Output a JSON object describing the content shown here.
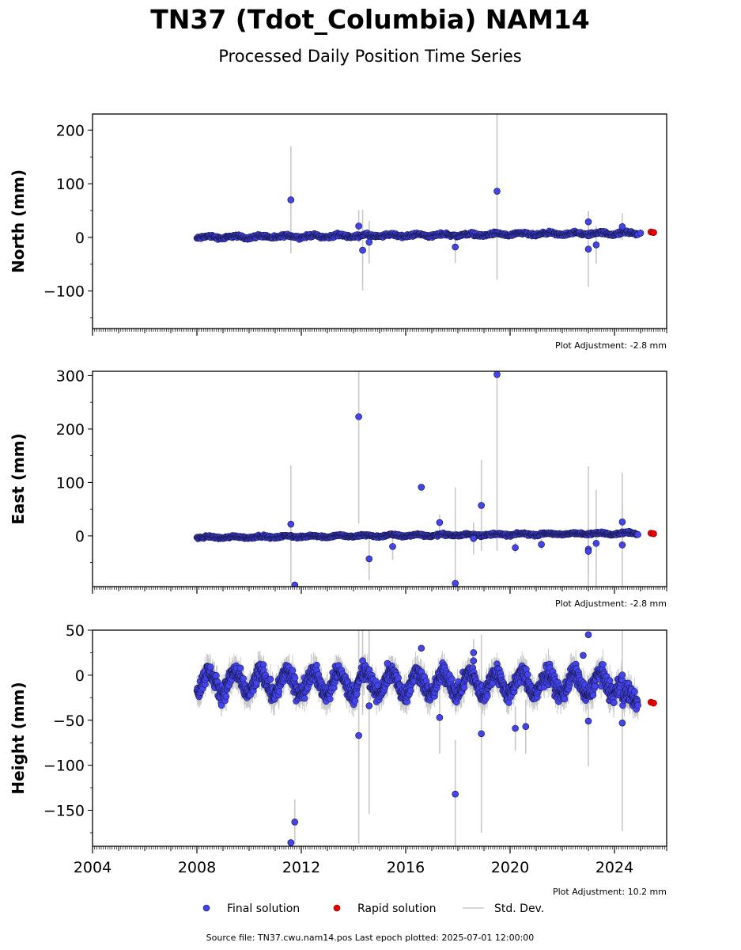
{
  "title": "TN37 (Tdot_Columbia) NAM14",
  "subtitle": "Processed Daily Position Time Series",
  "source_line": "Source file: TN37.cwu.nam14.pos  Last epoch plotted: 2025-07-01 12:00:00",
  "colors": {
    "final": "#4444ee",
    "final_edge": "#111133",
    "rapid": "#ee0000",
    "stddev": "#c8c8c8"
  },
  "legend": {
    "final": "Final solution",
    "rapid": "Rapid solution",
    "stddev": "Std. Dev."
  },
  "chart_data": [
    {
      "type": "scatter",
      "ylabel": "North (mm)",
      "adjustment": "Plot Adjustment: -2.8 mm",
      "xlim": [
        2004.0,
        2026.0
      ],
      "ylim": [
        -170,
        230
      ],
      "yticks": [
        200,
        100,
        0,
        -100
      ],
      "ytick_labels": [
        "200",
        "100",
        "0",
        "−100"
      ],
      "xticks": [
        2004,
        2008,
        2012,
        2016,
        2020,
        2024
      ],
      "xtick_labels": [],
      "final_series": {
        "start": 2008.0,
        "end": 2024.9,
        "trend_start": 0,
        "trend_end": 8,
        "annual_amp": 2,
        "noise": 2,
        "step": 0.02
      },
      "final_outliers": [
        {
          "x": 2011.6,
          "y": 70,
          "err": 100
        },
        {
          "x": 2014.2,
          "y": 21,
          "err": 30
        },
        {
          "x": 2014.35,
          "y": -24,
          "err": 75
        },
        {
          "x": 2014.6,
          "y": -9,
          "err": 40
        },
        {
          "x": 2017.9,
          "y": -18,
          "err": 30
        },
        {
          "x": 2019.5,
          "y": 86,
          "err": 165
        },
        {
          "x": 2023.0,
          "y": 29,
          "err": 20
        },
        {
          "x": 2023.0,
          "y": -22,
          "err": 70
        },
        {
          "x": 2023.3,
          "y": -14,
          "err": 35
        },
        {
          "x": 2024.3,
          "y": 20,
          "err": 25
        },
        {
          "x": 2025.0,
          "y": 8,
          "err": 0
        }
      ],
      "rapid": [
        {
          "x": 2025.4,
          "y": 10
        },
        {
          "x": 2025.5,
          "y": 9
        }
      ]
    },
    {
      "type": "scatter",
      "ylabel": "East (mm)",
      "adjustment": "Plot Adjustment: -2.8 mm",
      "xlim": [
        2004.0,
        2026.0
      ],
      "ylim": [
        -95,
        308
      ],
      "yticks": [
        300,
        200,
        100,
        0
      ],
      "ytick_labels": [
        "300",
        "200",
        "100",
        "0"
      ],
      "xticks": [
        2004,
        2008,
        2012,
        2016,
        2020,
        2024
      ],
      "xtick_labels": [],
      "final_series": {
        "start": 2008.0,
        "end": 2024.9,
        "trend_start": -3,
        "trend_end": 5,
        "annual_amp": 1.5,
        "noise": 1.5,
        "step": 0.02
      },
      "final_outliers": [
        {
          "x": 2011.6,
          "y": 22,
          "err": 110
        },
        {
          "x": 2011.75,
          "y": -92,
          "err": 0
        },
        {
          "x": 2014.2,
          "y": 223,
          "err": 200
        },
        {
          "x": 2014.6,
          "y": -43,
          "err": 40
        },
        {
          "x": 2015.5,
          "y": -20,
          "err": 25
        },
        {
          "x": 2016.6,
          "y": 91,
          "err": 0
        },
        {
          "x": 2017.3,
          "y": 25,
          "err": 15
        },
        {
          "x": 2017.9,
          "y": -89,
          "err": 180
        },
        {
          "x": 2018.6,
          "y": -5,
          "err": 30
        },
        {
          "x": 2018.9,
          "y": 57,
          "err": 85
        },
        {
          "x": 2019.5,
          "y": 302,
          "err": 330
        },
        {
          "x": 2020.2,
          "y": -22,
          "err": 10
        },
        {
          "x": 2021.2,
          "y": -16,
          "err": 10
        },
        {
          "x": 2023.0,
          "y": -25,
          "err": 155
        },
        {
          "x": 2023.0,
          "y": -29,
          "err": 40
        },
        {
          "x": 2023.3,
          "y": -14,
          "err": 100
        },
        {
          "x": 2024.3,
          "y": 26,
          "err": 35
        },
        {
          "x": 2024.3,
          "y": -17,
          "err": 135
        }
      ],
      "rapid": [
        {
          "x": 2025.4,
          "y": 5
        },
        {
          "x": 2025.5,
          "y": 4
        }
      ]
    },
    {
      "type": "scatter",
      "ylabel": "Height (mm)",
      "adjustment": "Plot Adjustment: 10.2 mm",
      "xlim": [
        2004.0,
        2026.0
      ],
      "ylim": [
        -190,
        50
      ],
      "yticks": [
        50,
        0,
        -50,
        -100,
        -150
      ],
      "ytick_labels": [
        "50",
        "0",
        "−50",
        "−100",
        "−150"
      ],
      "xticks": [
        2004,
        2008,
        2012,
        2016,
        2020,
        2024
      ],
      "xtick_labels": [
        "2004",
        "2008",
        "2012",
        "2016",
        "2020",
        "2024"
      ],
      "final_series": {
        "start": 2008.0,
        "end": 2024.9,
        "trend_start": -8,
        "trend_end": -10,
        "annual_amp": 12,
        "noise": 7,
        "step": 0.01,
        "dip": {
          "start": 2024.3,
          "end": 2024.9,
          "offset": -25
        }
      },
      "final_outliers": [
        {
          "x": 2011.6,
          "y": -186,
          "err": 0
        },
        {
          "x": 2011.75,
          "y": -163,
          "err": 25
        },
        {
          "x": 2014.2,
          "y": -67,
          "err": 120
        },
        {
          "x": 2014.35,
          "y": 16,
          "err": 60
        },
        {
          "x": 2014.6,
          "y": -34,
          "err": 120
        },
        {
          "x": 2015.3,
          "y": 13,
          "err": 0
        },
        {
          "x": 2016.6,
          "y": 30,
          "err": 0
        },
        {
          "x": 2017.3,
          "y": -47,
          "err": 40
        },
        {
          "x": 2017.9,
          "y": -132,
          "err": 60
        },
        {
          "x": 2018.6,
          "y": 25,
          "err": 15
        },
        {
          "x": 2018.6,
          "y": 16,
          "err": 20
        },
        {
          "x": 2018.9,
          "y": -65,
          "err": 110
        },
        {
          "x": 2020.2,
          "y": -59,
          "err": 25
        },
        {
          "x": 2020.6,
          "y": -57,
          "err": 30
        },
        {
          "x": 2022.8,
          "y": 22,
          "err": 0
        },
        {
          "x": 2023.0,
          "y": 45,
          "err": 0
        },
        {
          "x": 2023.0,
          "y": -51,
          "err": 50
        },
        {
          "x": 2024.3,
          "y": -53,
          "err": 120
        }
      ],
      "rapid": [
        {
          "x": 2025.4,
          "y": -30
        },
        {
          "x": 2025.5,
          "y": -31
        }
      ]
    }
  ]
}
